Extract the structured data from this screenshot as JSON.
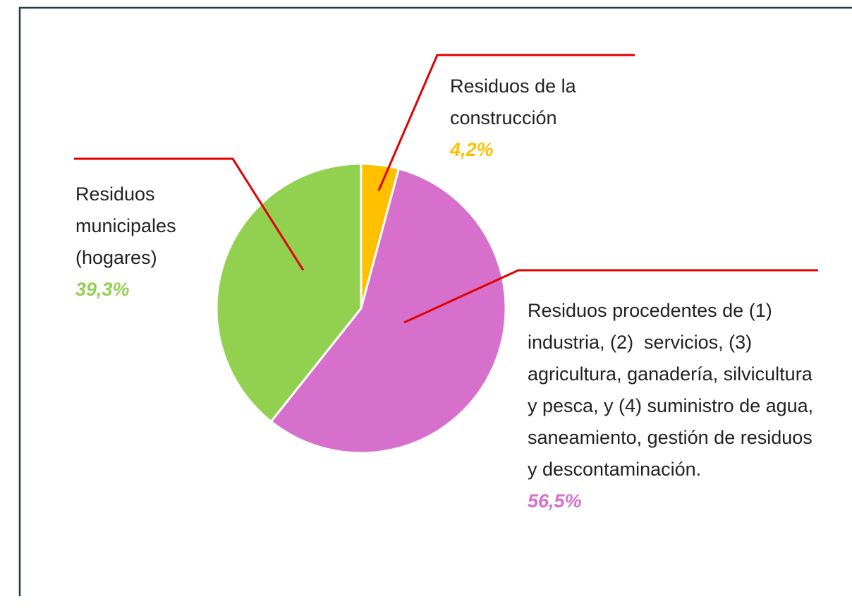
{
  "chart_data": {
    "type": "pie",
    "categories": [
      "Residuos de la construcción",
      "Residuos procedentes de (1) industria, (2)  servicios, (3) agricultura, ganadería, silvicultura y pesca, y (4) suministro de agua, saneamiento, gestión de residuos y descontaminación.",
      "Residuos municipales (hogares)"
    ],
    "values": [
      4.2,
      56.5,
      39.3
    ],
    "value_labels": [
      "4,2%",
      "56,5%",
      "39,3%"
    ],
    "colors": [
      "#ffc000",
      "#d670cc",
      "#92d050"
    ]
  }
}
